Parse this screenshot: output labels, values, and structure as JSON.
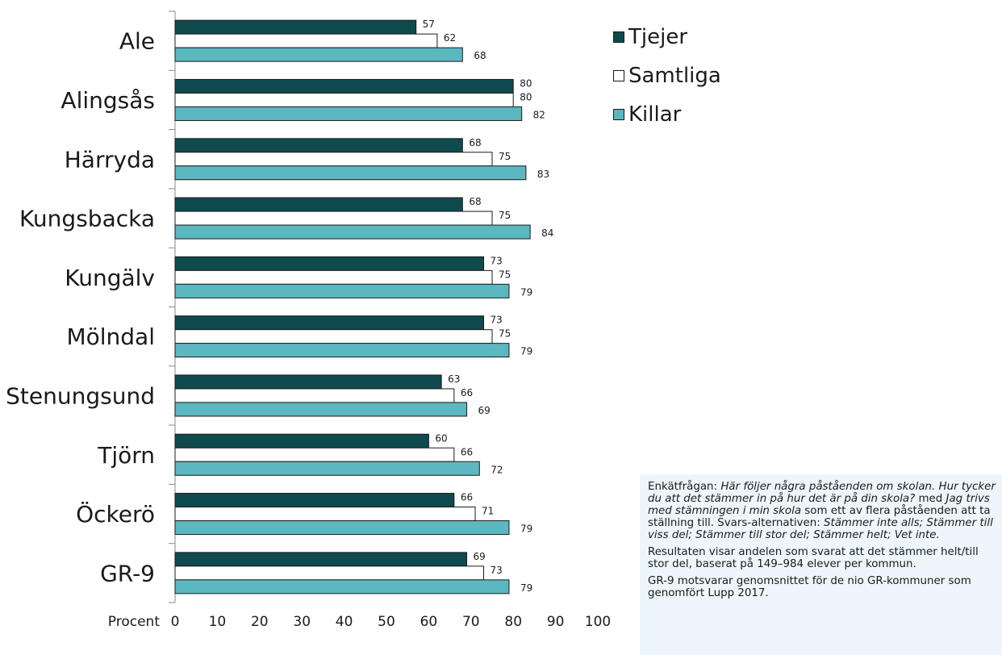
{
  "legend": {
    "items": [
      {
        "label": "Tjejer",
        "color": "#0f4a4f",
        "icon": "square-filled-icon"
      },
      {
        "label": "Samtliga",
        "color": "#ffffff",
        "icon": "square-outline-icon"
      },
      {
        "label": "Killar",
        "color": "#5bb8c1",
        "icon": "square-filled-icon"
      }
    ]
  },
  "info": {
    "p1_prefix": "Enkätfrågan: ",
    "p1_question": "Här följer några påståenden om skolan. Hur tycker du att det stämmer in på hur det är på din skola?",
    "p1_mid": " med ",
    "p1_statement": "Jag trivs med stämningen i min skola",
    "p1_suffix": " som ett av flera påståenden att ta ställning till. Svars-alternativen: ",
    "p1_options": "Stämmer inte alls; Stämmer till viss del; Stämmer till stor del; Stämmer helt; Vet inte.",
    "p2": "Resultaten visar andelen som svarat att det stämmer helt/till stor del, baserat på 149–984 elever per kommun.",
    "p3": "GR-9 motsvarar genomsnittet för de nio GR-kommuner som genomfört Lupp 2017."
  },
  "chart_data": {
    "type": "bar",
    "orientation": "horizontal",
    "categories": [
      "Ale",
      "Alingsås",
      "Härryda",
      "Kungsbacka",
      "Kungälv",
      "Mölndal",
      "Stenungsund",
      "Tjörn",
      "Öckerö",
      "GR-9"
    ],
    "series": [
      {
        "name": "Tjejer",
        "color": "#0f4a4f",
        "values": [
          57,
          80,
          68,
          68,
          73,
          73,
          63,
          60,
          66,
          69
        ]
      },
      {
        "name": "Samtliga",
        "color": "#ffffff",
        "values": [
          62,
          80,
          75,
          75,
          75,
          75,
          66,
          66,
          71,
          73
        ]
      },
      {
        "name": "Killar",
        "color": "#5bb8c1",
        "values": [
          68,
          82,
          83,
          84,
          79,
          79,
          69,
          72,
          79,
          79
        ]
      }
    ],
    "xlim": [
      0,
      100
    ],
    "xticks": [
      0,
      10,
      20,
      30,
      40,
      50,
      60,
      70,
      80,
      90,
      100
    ],
    "xlabel": "Procent",
    "data_labels": true,
    "grid": false,
    "legend_position": "top-right"
  }
}
